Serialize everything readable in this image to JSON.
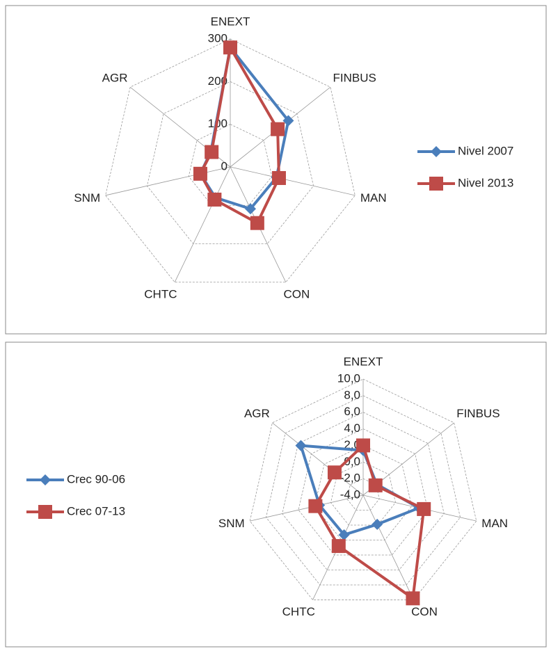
{
  "chart_data": [
    {
      "type": "radar",
      "categories": [
        "ENEXT",
        "FINBUS",
        "MAN",
        "CON",
        "CHTC",
        "SNM",
        "AGR"
      ],
      "series": [
        {
          "name": "Nivel 2007",
          "color": "#4a7ebb",
          "values": [
            280,
            174,
            111,
            109,
            80,
            72,
            58
          ]
        },
        {
          "name": "Nivel 2013",
          "color": "#be4b48",
          "values": [
            280,
            142,
            117,
            146,
            85,
            72,
            56
          ]
        }
      ],
      "ylim": [
        0,
        300
      ],
      "yticks": [
        0,
        100,
        200,
        300
      ],
      "legend": "right",
      "grid": true
    },
    {
      "type": "radar",
      "categories": [
        "ENEXT",
        "FINBUS",
        "MAN",
        "CON",
        "CHTC",
        "SNM",
        "AGR"
      ],
      "series": [
        {
          "name": "Crec 90-06",
          "color": "#4a7ebb",
          "values": [
            1.4,
            -1.9,
            2.9,
            -0.1,
            1.3,
            1.4,
            5.6
          ]
        },
        {
          "name": "Crec 07-13",
          "color": "#be4b48",
          "values": [
            2.0,
            -2.1,
            3.5,
            9.8,
            2.8,
            1.9,
            0.4
          ]
        }
      ],
      "ylim": [
        -4,
        10
      ],
      "yticks": [
        {
          "value": -4,
          "label": "-4,0"
        },
        {
          "value": -2,
          "label": "-2,0"
        },
        {
          "value": 0,
          "label": "0,0"
        },
        {
          "value": 2,
          "label": "2,0"
        },
        {
          "value": 4,
          "label": "4,0"
        },
        {
          "value": 6,
          "label": "6,0"
        },
        {
          "value": 8,
          "label": "8,0"
        },
        {
          "value": 10,
          "label": "10,0"
        }
      ],
      "legend": "left",
      "grid": true
    }
  ]
}
